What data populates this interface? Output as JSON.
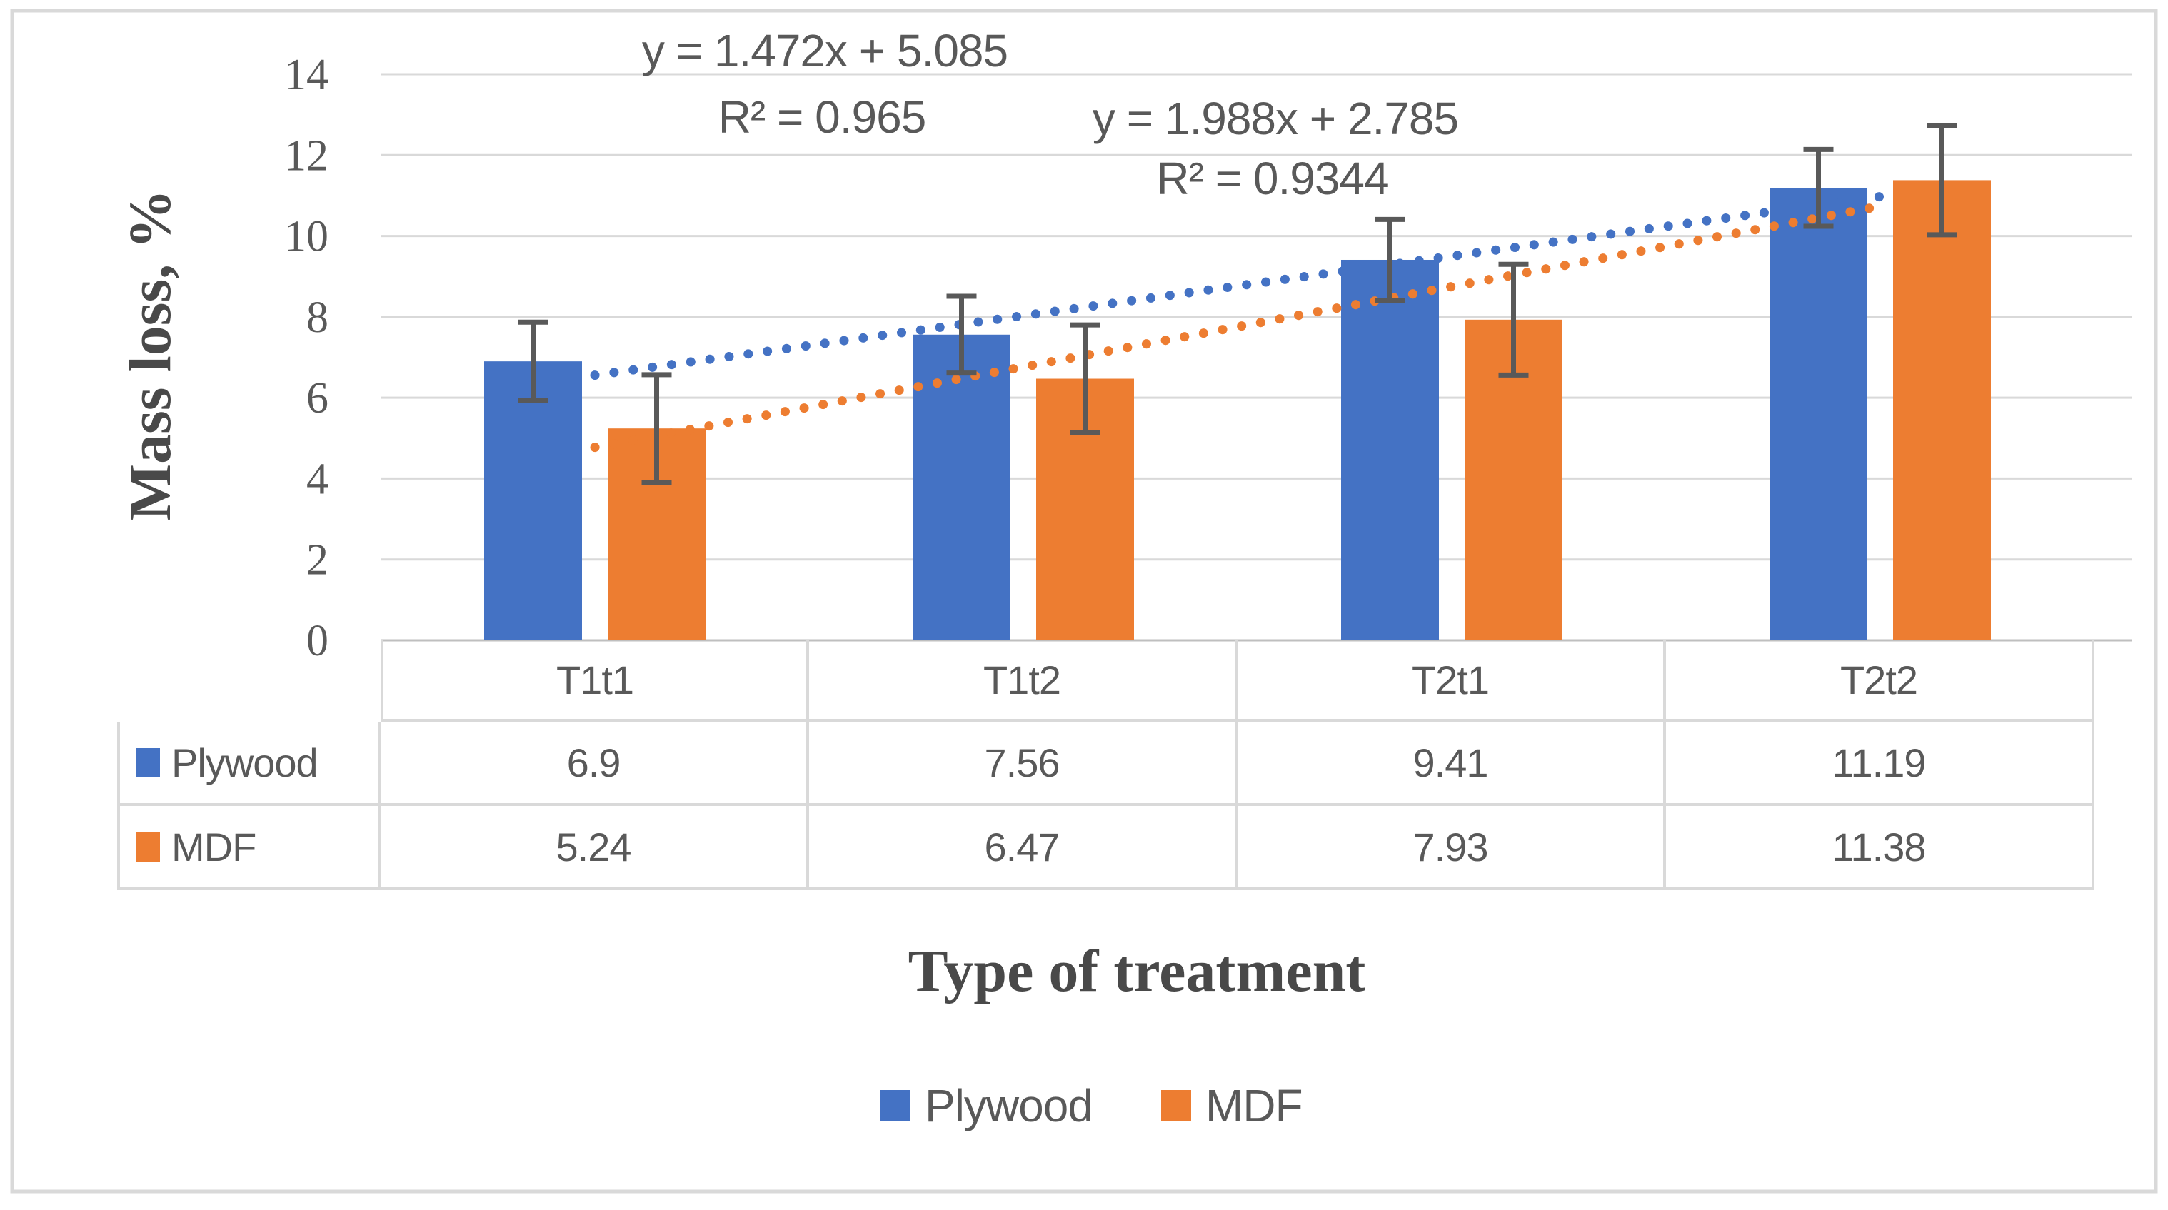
{
  "chart_data": {
    "type": "bar",
    "title": "",
    "categories": [
      "T1t1",
      "T1t2",
      "T2t1",
      "T2t2"
    ],
    "series": [
      {
        "name": "Plywood",
        "color": "#4472C4",
        "values": [
          6.9,
          7.56,
          9.41,
          11.19
        ],
        "error_bars": [
          0.97,
          0.95,
          1.0,
          0.95
        ],
        "trendline": {
          "style": "dotted",
          "slope": 1.472,
          "intercept": 5.085,
          "equation_label": "y = 1.472x + 5.085",
          "r_squared_label": "R² = 0.965"
        }
      },
      {
        "name": "MDF",
        "color": "#ED7D31",
        "values": [
          5.24,
          6.47,
          7.93,
          11.38
        ],
        "error_bars": [
          1.33,
          1.33,
          1.37,
          1.35
        ],
        "trendline": {
          "style": "dotted",
          "slope": 1.988,
          "intercept": 2.785,
          "equation_label": "y = 1.988x + 2.785",
          "r_squared_label": "R² = 0.9344"
        }
      }
    ],
    "xlabel": "Type of treatment",
    "ylabel": "Mass loss, %",
    "ylim": [
      0,
      14
    ],
    "ytick_step": 2,
    "grid": true,
    "legend_position": "bottom",
    "data_table_shown": true
  },
  "colors": {
    "gridline": "#D9D9D9",
    "axis_line": "#BFBFBF",
    "table_border": "#D9D9D9",
    "canvas_border": "#D9D9D9",
    "text": "#595959",
    "title_text": "#494949",
    "error_bar": "#595959"
  }
}
